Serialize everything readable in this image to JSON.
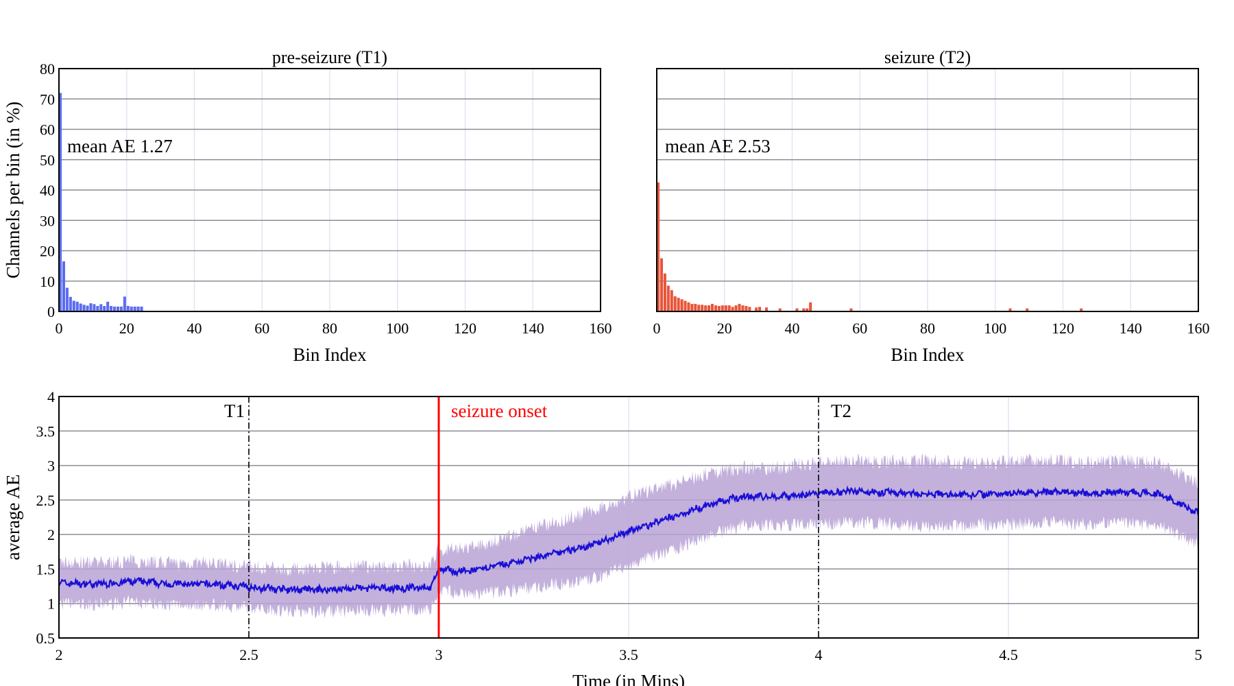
{
  "chart_data": [
    {
      "type": "bar",
      "title": "pre-seizure (T1)",
      "xlabel": "Bin Index",
      "ylabel": "Channels per bin (in %)",
      "xlim": [
        0,
        160
      ],
      "ylim": [
        0,
        80
      ],
      "xticks": [
        "0",
        "20",
        "40",
        "60",
        "80",
        "100",
        "120",
        "140",
        "160"
      ],
      "yticks": [
        "0",
        "10",
        "20",
        "30",
        "40",
        "50",
        "60",
        "70",
        "80"
      ],
      "annotation": "mean AE 1.27",
      "color": "#5b6cf0",
      "bin_width": 1,
      "bins": [
        0,
        1,
        2,
        3,
        4,
        5,
        6,
        7,
        8,
        9,
        10,
        11,
        12,
        13,
        14,
        15,
        16,
        17,
        18,
        19,
        20,
        21,
        22,
        23,
        24
      ],
      "values": [
        72,
        16.5,
        7.8,
        4.8,
        3.5,
        3.2,
        2.6,
        2.2,
        1.9,
        2.7,
        2.4,
        1.8,
        2.4,
        1.8,
        3.2,
        1.8,
        1.6,
        1.6,
        1.6,
        4.9,
        1.8,
        1.6,
        1.6,
        1.6,
        1.6
      ],
      "grid": true
    },
    {
      "type": "bar",
      "title": "seizure (T2)",
      "xlabel": "Bin Index",
      "ylabel": "",
      "xlim": [
        0,
        160
      ],
      "ylim": [
        0,
        80
      ],
      "xticks": [
        "0",
        "20",
        "40",
        "60",
        "80",
        "100",
        "120",
        "140",
        "160"
      ],
      "annotation": "mean AE 2.53",
      "color": "#e8553a",
      "bin_width": 1,
      "bins": [
        0,
        1,
        2,
        3,
        4,
        5,
        6,
        7,
        8,
        9,
        10,
        11,
        12,
        13,
        14,
        15,
        16,
        17,
        18,
        19,
        20,
        21,
        22,
        23,
        24,
        25,
        26,
        27,
        29,
        30,
        32,
        36,
        41,
        43,
        44,
        45,
        57,
        104,
        109,
        125
      ],
      "values": [
        42.5,
        17.5,
        12.5,
        8.5,
        7,
        5,
        4.5,
        4,
        3.5,
        3,
        2.5,
        2.5,
        2.2,
        2.2,
        2,
        2,
        2.5,
        2,
        1.8,
        2,
        2,
        2,
        1.5,
        2,
        2.5,
        2,
        1.8,
        1.5,
        1.3,
        1.5,
        1.3,
        1,
        1,
        1,
        1,
        3,
        1,
        1,
        1,
        1
      ],
      "grid": true
    },
    {
      "type": "line",
      "title": "",
      "xlabel": "Time (in Mins)",
      "ylabel": "average AE",
      "xlim": [
        2,
        5
      ],
      "ylim": [
        0.5,
        4
      ],
      "xticks": [
        "2",
        "2.5",
        "3",
        "3.5",
        "4",
        "4.5",
        "5"
      ],
      "yticks": [
        "0.5",
        "1",
        "1.5",
        "2",
        "2.5",
        "3",
        "3.5",
        "4"
      ],
      "series": [
        {
          "role": "mean",
          "color": "#1a0fd6",
          "x": [
            2.0,
            2.1,
            2.2,
            2.3,
            2.4,
            2.5,
            2.6,
            2.7,
            2.8,
            2.9,
            2.98,
            3.0,
            3.05,
            3.1,
            3.2,
            3.3,
            3.4,
            3.5,
            3.6,
            3.7,
            3.8,
            3.9,
            4.0,
            4.1,
            4.2,
            4.3,
            4.4,
            4.5,
            4.6,
            4.7,
            4.8,
            4.9,
            5.0
          ],
          "y": [
            1.3,
            1.28,
            1.32,
            1.28,
            1.28,
            1.24,
            1.2,
            1.2,
            1.22,
            1.22,
            1.24,
            1.5,
            1.46,
            1.48,
            1.6,
            1.72,
            1.84,
            2.05,
            2.22,
            2.42,
            2.55,
            2.55,
            2.6,
            2.63,
            2.6,
            2.58,
            2.58,
            2.6,
            2.62,
            2.6,
            2.62,
            2.58,
            2.3
          ]
        },
        {
          "role": "spread",
          "color": "#b9a3d6",
          "x": [
            2.0,
            2.1,
            2.2,
            2.3,
            2.4,
            2.5,
            2.6,
            2.7,
            2.8,
            2.9,
            2.98,
            3.0,
            3.05,
            3.1,
            3.2,
            3.3,
            3.4,
            3.5,
            3.6,
            3.7,
            3.8,
            3.9,
            4.0,
            4.1,
            4.2,
            4.3,
            4.4,
            4.5,
            4.6,
            4.7,
            4.8,
            4.9,
            5.0
          ],
          "y": [
            0.3,
            0.3,
            0.3,
            0.3,
            0.3,
            0.3,
            0.3,
            0.32,
            0.32,
            0.32,
            0.32,
            0.3,
            0.32,
            0.35,
            0.4,
            0.45,
            0.5,
            0.5,
            0.48,
            0.45,
            0.42,
            0.42,
            0.45,
            0.45,
            0.45,
            0.48,
            0.45,
            0.45,
            0.45,
            0.45,
            0.45,
            0.45,
            0.45
          ]
        }
      ],
      "markers": [
        {
          "x": 2.5,
          "label": "T1",
          "style": "dashdot",
          "color": "#000000"
        },
        {
          "x": 3.0,
          "label": "seizure onset",
          "style": "solid",
          "color": "#ff0000"
        },
        {
          "x": 4.0,
          "label": "T2",
          "style": "dashdot",
          "color": "#000000"
        }
      ],
      "grid": true
    }
  ]
}
